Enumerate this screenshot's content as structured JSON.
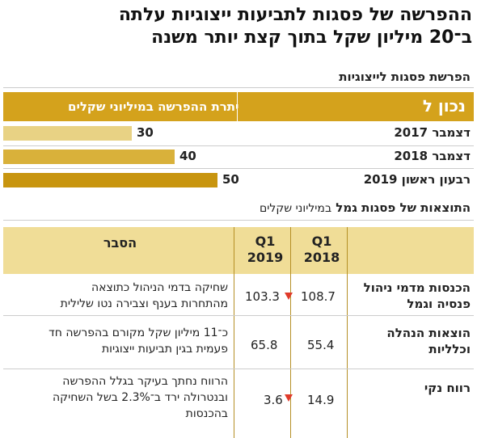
{
  "title": {
    "line1": "ההפרשה של פסגות לתביעות ייצוגיות עלתה",
    "line2": "ב־20 מיליון שקל בתוך קצת יותר משנה"
  },
  "provision_section": {
    "title": "הפרשת פסגות לייצוגיות",
    "header_date": "נכון ל",
    "header_value": "יתרת ההפרשה במיליוני שקלים"
  },
  "results_section": {
    "title_main": "התוצאות של פסגות גמל",
    "title_unit": "במיליוני שקלים",
    "col_2018": "Q1\n2018",
    "col_2019": "Q1\n2019",
    "col_note": "הסבר",
    "rows": [
      {
        "category": "הכנסות מדמי ניהול\nפנסיה וגמל",
        "q1_2018": "108.7",
        "q1_2019": "103.3",
        "down": true,
        "note": "שחיקה בדמי הניהול כתוצאה\nמהתחרות בענף וצבירה נטו שלילית"
      },
      {
        "category": "הוצאות הנהלה\nוכלליות",
        "q1_2018": "55.4",
        "q1_2019": "65.8",
        "down": false,
        "note": "כ־11 מיליון שקל מקורם בהפרשה חד\nפעמית בגין תביעות ייצוגיות"
      },
      {
        "category": "רווח נקי",
        "q1_2018": "14.9",
        "q1_2019": "3.6",
        "down": true,
        "note": "הרווח נחתך בעיקר בגלל ההפרשה\nובנטרולה ירד ב־2.3% בשל השחיקה\nבהכנסות"
      }
    ]
  },
  "chart_data": {
    "type": "bar",
    "title": "הפרשת פסגות לייצוגיות",
    "xlabel": "נכון ל",
    "ylabel": "יתרת ההפרשה במיליוני שקלים",
    "categories": [
      "דצמבר 2017",
      "דצמבר 2018",
      "רבעון ראשון 2019"
    ],
    "values": [
      30,
      40,
      50
    ],
    "colors": [
      "#e8d284",
      "#d9b13a",
      "#c8950f"
    ]
  },
  "colors": {
    "header_gold": "#d4a21c",
    "table_head": "#f0dd97",
    "down_arrow": "#e03a2a"
  }
}
